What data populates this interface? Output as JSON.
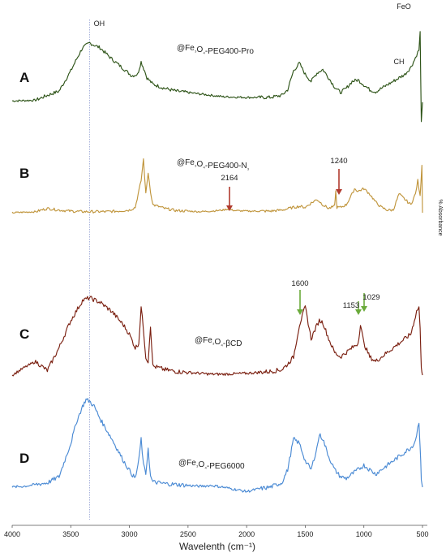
{
  "chart_data": {
    "type": "line",
    "title": "",
    "xlabel": "Wavelenth (cm⁻¹)",
    "ylabel": "% Absorbance",
    "xlim": [
      4000,
      500
    ],
    "x_ticks": [
      "4000",
      "3500",
      "3000",
      "2500",
      "2000",
      "1500",
      "1000",
      "500"
    ],
    "grid": false,
    "reference_line": {
      "x": 3340,
      "label": "OH"
    },
    "band_labels": [
      {
        "text": "FeO",
        "x": 500
      },
      {
        "text": "CH",
        "x": 600
      }
    ],
    "series": [
      {
        "panel": "A",
        "name": "@Fe₃O₄-PEG400-Pro",
        "color": "#2e5418",
        "x": [
          4000,
          3800,
          3700,
          3600,
          3500,
          3450,
          3400,
          3340,
          3250,
          3150,
          3050,
          2980,
          2930,
          2900,
          2870,
          2850,
          2800,
          2700,
          2600,
          2400,
          2300,
          2200,
          2000,
          1800,
          1700,
          1650,
          1600,
          1550,
          1500,
          1450,
          1400,
          1350,
          1300,
          1250,
          1200,
          1150,
          1100,
          1050,
          1000,
          950,
          900,
          850,
          800,
          750,
          700,
          650,
          600,
          570,
          550,
          530,
          520,
          510,
          500
        ],
        "y": [
          0.02,
          0.03,
          0.1,
          0.16,
          0.45,
          0.62,
          0.78,
          0.85,
          0.78,
          0.62,
          0.48,
          0.38,
          0.4,
          0.58,
          0.45,
          0.35,
          0.26,
          0.2,
          0.16,
          0.12,
          0.1,
          0.08,
          0.07,
          0.07,
          0.1,
          0.18,
          0.45,
          0.56,
          0.4,
          0.3,
          0.42,
          0.47,
          0.35,
          0.22,
          0.14,
          0.2,
          0.3,
          0.32,
          0.25,
          0.18,
          0.15,
          0.2,
          0.25,
          0.3,
          0.35,
          0.4,
          0.5,
          0.6,
          0.68,
          0.75,
          1.0,
          -0.3,
          0.0
        ]
      },
      {
        "panel": "B",
        "name": "@Fe₃O₄-PEG400-N₃",
        "color": "#c0953c",
        "x": [
          4000,
          3800,
          3700,
          3600,
          3500,
          3400,
          3300,
          3200,
          3100,
          3000,
          2950,
          2900,
          2880,
          2860,
          2840,
          2820,
          2800,
          2700,
          2600,
          2500,
          2400,
          2300,
          2200,
          2164,
          2100,
          2000,
          1900,
          1800,
          1700,
          1600,
          1550,
          1500,
          1450,
          1400,
          1350,
          1300,
          1250,
          1240,
          1230,
          1200,
          1150,
          1100,
          1080,
          1050,
          1000,
          950,
          900,
          850,
          800,
          750,
          700,
          650,
          600,
          560,
          540,
          520,
          505,
          500
        ],
        "y": [
          0.0,
          0.02,
          0.08,
          0.05,
          0.03,
          0.02,
          0.02,
          0.02,
          0.03,
          0.05,
          0.1,
          0.6,
          1.0,
          0.35,
          0.75,
          0.4,
          0.15,
          0.08,
          0.04,
          0.03,
          0.02,
          0.03,
          0.05,
          0.07,
          0.04,
          0.03,
          0.03,
          0.03,
          0.05,
          0.1,
          0.12,
          0.1,
          0.18,
          0.25,
          0.15,
          0.08,
          0.12,
          0.4,
          0.1,
          0.1,
          0.15,
          0.35,
          0.45,
          0.4,
          0.45,
          0.35,
          0.2,
          0.1,
          0.05,
          0.05,
          0.35,
          0.25,
          0.15,
          0.35,
          0.6,
          0.3,
          0.9,
          0.0
        ]
      },
      {
        "panel": "C",
        "name": "@Fe₃O₄-βCD",
        "color": "#7a1f10",
        "x": [
          4000,
          3900,
          3800,
          3700,
          3600,
          3500,
          3400,
          3340,
          3250,
          3150,
          3050,
          3000,
          2950,
          2920,
          2900,
          2880,
          2860,
          2840,
          2820,
          2800,
          2700,
          2600,
          2500,
          2400,
          2300,
          2200,
          2000,
          1900,
          1800,
          1700,
          1650,
          1600,
          1550,
          1500,
          1450,
          1400,
          1380,
          1350,
          1300,
          1250,
          1200,
          1150,
          1100,
          1050,
          1029,
          1000,
          950,
          900,
          850,
          800,
          750,
          700,
          650,
          600,
          570,
          550,
          530,
          520,
          510,
          500
        ],
        "y": [
          0.0,
          0.08,
          0.15,
          0.05,
          0.3,
          0.6,
          0.82,
          0.85,
          0.8,
          0.7,
          0.55,
          0.45,
          0.3,
          0.35,
          0.75,
          0.5,
          0.2,
          0.15,
          0.55,
          0.1,
          0.06,
          0.04,
          0.03,
          0.02,
          0.01,
          0.01,
          0.02,
          0.03,
          0.04,
          0.06,
          0.12,
          0.2,
          0.55,
          0.75,
          0.4,
          0.55,
          0.6,
          0.58,
          0.4,
          0.25,
          0.2,
          0.25,
          0.3,
          0.35,
          0.55,
          0.35,
          0.2,
          0.15,
          0.2,
          0.25,
          0.3,
          0.35,
          0.4,
          0.45,
          0.6,
          0.7,
          0.75,
          0.5,
          0.1,
          0.0
        ]
      },
      {
        "panel": "D",
        "name": "@Fe₃O₄-PEG6000",
        "color": "#4a8ad4",
        "x": [
          4000,
          3900,
          3800,
          3700,
          3600,
          3500,
          3450,
          3400,
          3370,
          3340,
          3300,
          3250,
          3150,
          3050,
          2980,
          2950,
          2920,
          2900,
          2880,
          2860,
          2840,
          2820,
          2800,
          2700,
          2600,
          2500,
          2400,
          2300,
          2200,
          2000,
          1900,
          1800,
          1700,
          1650,
          1600,
          1550,
          1500,
          1450,
          1400,
          1380,
          1350,
          1300,
          1250,
          1200,
          1150,
          1100,
          1050,
          1000,
          950,
          900,
          850,
          800,
          750,
          700,
          650,
          600,
          570,
          550,
          530,
          520,
          510,
          500
        ],
        "y": [
          0.0,
          0.01,
          0.03,
          0.05,
          0.12,
          0.5,
          0.75,
          0.92,
          1.0,
          0.98,
          0.92,
          0.78,
          0.55,
          0.3,
          0.15,
          0.1,
          0.3,
          0.55,
          0.25,
          0.15,
          0.45,
          0.12,
          0.06,
          0.04,
          0.03,
          0.02,
          0.01,
          0.02,
          0.0,
          -0.05,
          -0.02,
          0.0,
          0.05,
          0.2,
          0.55,
          0.5,
          0.3,
          0.2,
          0.45,
          0.6,
          0.55,
          0.35,
          0.2,
          0.12,
          0.1,
          0.15,
          0.2,
          0.25,
          0.2,
          0.15,
          0.2,
          0.25,
          0.3,
          0.35,
          0.4,
          0.45,
          0.5,
          0.6,
          0.75,
          0.45,
          0.1,
          0.0
        ]
      }
    ],
    "annotations": [
      {
        "panel": "B",
        "text": "2164",
        "x": 2164,
        "arrow_color": "#b03a2e"
      },
      {
        "panel": "B",
        "text": "1240",
        "x": 1240,
        "arrow_color": "#b03a2e"
      },
      {
        "panel": "C",
        "text": "1600",
        "x": 1550,
        "arrow_color": "#6aaa3a"
      },
      {
        "panel": "C",
        "text": "1153",
        "x": 1035,
        "arrow_color": "#6aaa3a"
      },
      {
        "panel": "C",
        "text": "1029",
        "x": 985,
        "arrow_color": "#6aaa3a"
      }
    ]
  }
}
